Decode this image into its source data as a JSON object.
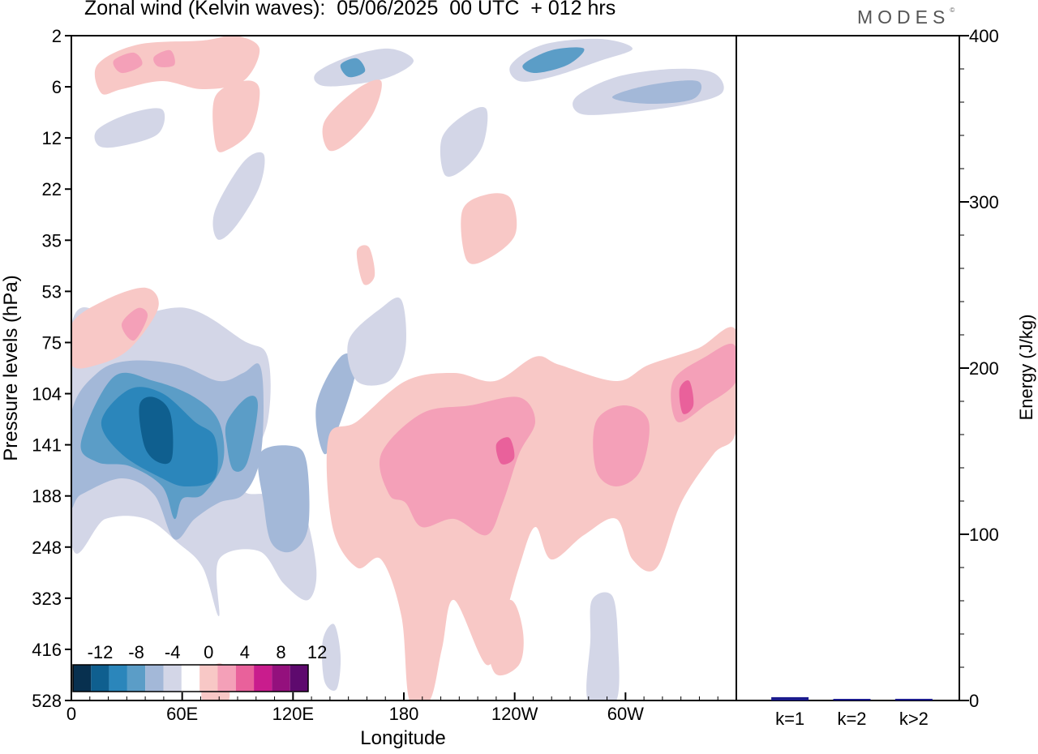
{
  "header": {
    "title": "Zonal wind (Kelvin waves):  05/06/2025  00 UTC  + 012 hrs",
    "brand": "MODES"
  },
  "colors": {
    "levels": [
      "#08304f",
      "#0f5f8f",
      "#2b86bb",
      "#5b9dc7",
      "#a3b8d8",
      "#d3d6e7",
      "#ffffff",
      "#f8c8c6",
      "#f4a0b8",
      "#e9619b",
      "#c91c8d",
      "#94107d",
      "#5e0a6e"
    ]
  },
  "chart_data": [
    {
      "type": "heatmap",
      "title": "Zonal wind (Kelvin waves):  05/06/2025  00 UTC  + 012 hrs",
      "xlabel": "Longitude",
      "ylabel": "Pressure levels (hPa)",
      "x_ticks": [
        "0",
        "60E",
        "120E",
        "180",
        "120W",
        "60W"
      ],
      "x_tick_values": [
        0,
        60,
        120,
        180,
        240,
        300
      ],
      "xlim": [
        0,
        360
      ],
      "y_ticks": [
        "2",
        "6",
        "12",
        "22",
        "35",
        "53",
        "75",
        "104",
        "141",
        "188",
        "248",
        "323",
        "416",
        "528"
      ],
      "y_scale": "pressure levels (log), top 2 hPa, bottom 528 hPa",
      "colorbar": {
        "tick_labels": [
          "-12",
          "-8",
          "-4",
          "0",
          "4",
          "8",
          "12"
        ],
        "levels": [
          -14,
          -12,
          -10,
          -8,
          -6,
          -4,
          -2,
          2,
          4,
          6,
          8,
          10,
          12,
          14
        ]
      },
      "features": [
        {
          "sign": "negative",
          "min": -12,
          "lon": 48,
          "p": 130,
          "lon_range": [
            0,
            120
          ],
          "p_range": [
            85,
            300
          ]
        },
        {
          "sign": "positive",
          "min": 8,
          "lon": 225,
          "p": 145,
          "lon_range": [
            140,
            350
          ],
          "p_range": [
            70,
            528
          ]
        },
        {
          "sign": "negative",
          "min": -6,
          "lon": 250,
          "p": 4,
          "lon_range": [
            230,
            300
          ],
          "p_range": [
            2,
            8
          ]
        },
        {
          "sign": "positive",
          "min": 8,
          "lon": 336,
          "p": 112,
          "lon_range": [
            315,
            360
          ],
          "p_range": [
            70,
            150
          ]
        }
      ]
    },
    {
      "type": "bar",
      "ylabel": "Energy (J/kg)",
      "categories": [
        "k=1",
        "k=2",
        "k>2"
      ],
      "values": [
        2,
        0.3,
        1
      ],
      "ylim": [
        0,
        400
      ],
      "y_ticks": [
        "0",
        "100",
        "200",
        "300",
        "400"
      ],
      "bar_color": "#1a1a8c"
    }
  ]
}
